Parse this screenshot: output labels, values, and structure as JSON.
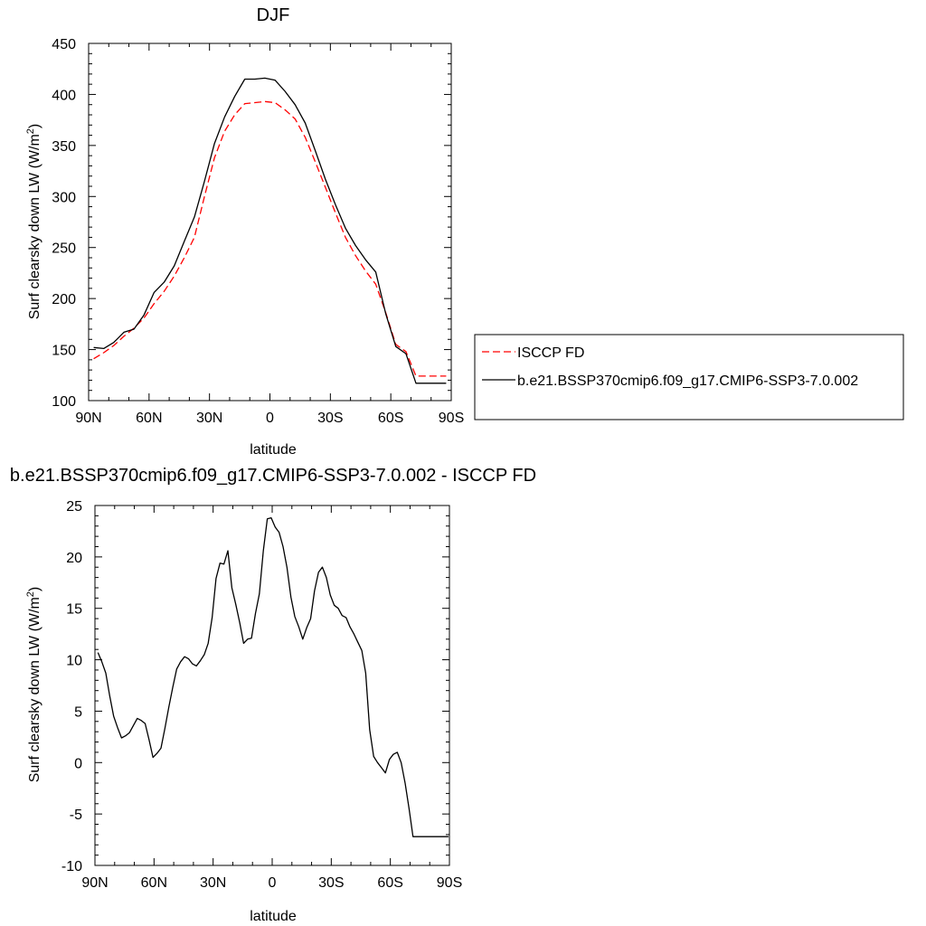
{
  "chart_data": [
    {
      "type": "line",
      "title": "DJF",
      "xlabel": "latitude",
      "ylabel": "Surf clearsky down LW (W/m",
      "ylabel_sup": "2",
      "ylabel_close": ")",
      "xlim": [
        90,
        -90
      ],
      "ylim": [
        100,
        450
      ],
      "xticks": [
        {
          "value": 90,
          "label": "90N"
        },
        {
          "value": 60,
          "label": "60N"
        },
        {
          "value": 30,
          "label": "30N"
        },
        {
          "value": 0,
          "label": "0"
        },
        {
          "value": -30,
          "label": "30S"
        },
        {
          "value": -60,
          "label": "60S"
        },
        {
          "value": -90,
          "label": "90S"
        }
      ],
      "yticks": [
        100,
        150,
        200,
        250,
        300,
        350,
        400,
        450
      ],
      "legend_position": "right",
      "series": [
        {
          "name": "ISCCP FD",
          "color": "#ff0000",
          "style": "dashed",
          "x": [
            87.5,
            82.5,
            77.5,
            72.5,
            67.5,
            62.5,
            57.5,
            52.5,
            47.5,
            42.5,
            37.5,
            32.5,
            27.5,
            22.5,
            17.5,
            12.5,
            7.5,
            2.5,
            -2.5,
            -7.5,
            -12.5,
            -17.5,
            -22.5,
            -27.5,
            -32.5,
            -37.5,
            -42.5,
            -47.5,
            -52.5,
            -57.5,
            -62.5,
            -67.5,
            -72.5,
            -77.5,
            -82.5,
            -87.5
          ],
          "y": [
            141,
            147,
            154,
            163,
            171,
            181,
            195,
            207,
            222,
            240,
            260,
            300,
            338,
            364,
            380,
            391,
            392,
            393,
            392,
            385,
            376,
            358,
            334,
            309,
            284,
            260,
            242,
            227,
            214,
            186,
            155,
            148,
            124,
            124,
            124,
            124
          ]
        },
        {
          "name": "b.e21.BSSP370cmip6.f09_g17.CMIP6-SSP3-7.0.002",
          "color": "#000000",
          "style": "solid",
          "x": [
            87.5,
            82.5,
            77.5,
            72.5,
            67.5,
            62.5,
            57.5,
            52.5,
            47.5,
            42.5,
            37.5,
            32.5,
            27.5,
            22.5,
            17.5,
            12.5,
            7.5,
            2.5,
            -2.5,
            -7.5,
            -12.5,
            -17.5,
            -22.5,
            -27.5,
            -32.5,
            -37.5,
            -42.5,
            -47.5,
            -52.5,
            -57.5,
            -62.5,
            -67.5,
            -72.5,
            -77.5,
            -82.5,
            -87.5
          ],
          "y": [
            152,
            151,
            157,
            167,
            170,
            184,
            206,
            216,
            232,
            256,
            280,
            315,
            352,
            378,
            398,
            415,
            415,
            416,
            414,
            403,
            390,
            372,
            345,
            317,
            292,
            269,
            252,
            238,
            226,
            185,
            153,
            146,
            117,
            117,
            117,
            117
          ]
        }
      ]
    },
    {
      "type": "line",
      "title": "b.e21.BSSP370cmip6.f09_g17.CMIP6-SSP3-7.0.002 - ISCCP FD",
      "xlabel": "latitude",
      "ylabel": "Surf clearsky down LW (W/m",
      "ylabel_sup": "2",
      "ylabel_close": ")",
      "xlim": [
        90,
        -90
      ],
      "ylim": [
        -10,
        25
      ],
      "xticks": [
        {
          "value": 90,
          "label": "90N"
        },
        {
          "value": 60,
          "label": "60N"
        },
        {
          "value": 30,
          "label": "30N"
        },
        {
          "value": 0,
          "label": "0"
        },
        {
          "value": -30,
          "label": "30S"
        },
        {
          "value": -60,
          "label": "60S"
        },
        {
          "value": -90,
          "label": "90S"
        }
      ],
      "yticks": [
        -10,
        -5,
        0,
        5,
        10,
        15,
        20,
        25
      ],
      "series": [
        {
          "name": "",
          "color": "#000000",
          "style": "solid",
          "x": [
            88.5,
            86.5,
            84.5,
            82.5,
            80.5,
            78.5,
            76.5,
            74.5,
            72.5,
            70.5,
            68.5,
            66.5,
            64.5,
            62.5,
            60.5,
            58.5,
            56.5,
            54.5,
            52.5,
            50.5,
            48.5,
            46.5,
            44.5,
            42.5,
            40.5,
            38.5,
            36.5,
            34.5,
            32.5,
            30.5,
            28.5,
            26.5,
            24.5,
            22.5,
            20.5,
            18.5,
            16.5,
            14.5,
            12.5,
            10.5,
            8.5,
            6.5,
            4.5,
            2.5,
            0.5,
            -1.5,
            -3.5,
            -5.5,
            -7.5,
            -9.5,
            -11.5,
            -13.5,
            -15.5,
            -17.5,
            -19.5,
            -21.5,
            -23.5,
            -25.5,
            -27.5,
            -29.5,
            -31.5,
            -33.5,
            -35.5,
            -37.5,
            -39.5,
            -41.5,
            -43.5,
            -45.5,
            -47.5,
            -49.5,
            -51.5,
            -53.5,
            -55.5,
            -57.5,
            -59.5,
            -61.5,
            -63.5,
            -65.5,
            -67.5,
            -69.5,
            -71.5,
            -73.5,
            -75.5,
            -77.5,
            -79.5,
            -81.5,
            -83.5,
            -85.5,
            -87.5,
            -89.5
          ],
          "y": [
            10.7,
            9.8,
            8.7,
            6.5,
            4.5,
            3.4,
            2.4,
            2.6,
            2.9,
            3.6,
            4.3,
            4.1,
            3.8,
            2.2,
            0.5,
            0.9,
            1.4,
            3.3,
            5.4,
            7.3,
            9.1,
            9.8,
            10.3,
            10.1,
            9.6,
            9.4,
            9.9,
            10.5,
            11.6,
            14.1,
            17.9,
            19.4,
            19.3,
            20.6,
            17.0,
            15.4,
            13.6,
            11.6,
            12.0,
            12.1,
            14.5,
            16.4,
            20.6,
            23.7,
            23.8,
            22.9,
            22.4,
            21.0,
            19.0,
            16.1,
            14.2,
            13.2,
            12.0,
            13.1,
            14.0,
            16.7,
            18.5,
            19.0,
            18.0,
            16.3,
            15.3,
            15.0,
            14.3,
            14.1,
            13.2,
            12.5,
            11.7,
            10.9,
            8.7,
            3.2,
            0.6,
            0.0,
            -0.5,
            -1.0,
            0.3,
            0.8,
            1.0,
            0.0,
            -2.0,
            -4.5,
            -7.2,
            -7.2,
            -7.2,
            -7.2,
            -7.2,
            -7.2,
            -7.2,
            -7.2,
            -7.2,
            -7.2
          ]
        }
      ]
    }
  ]
}
